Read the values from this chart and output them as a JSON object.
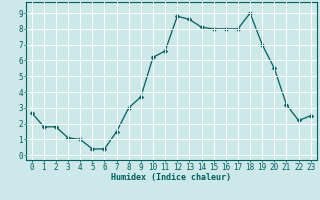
{
  "x": [
    0,
    1,
    2,
    3,
    4,
    5,
    6,
    7,
    8,
    9,
    10,
    11,
    12,
    13,
    14,
    15,
    16,
    17,
    18,
    19,
    20,
    21,
    22,
    23
  ],
  "y": [
    2.7,
    1.8,
    1.8,
    1.1,
    1.0,
    0.4,
    0.4,
    1.5,
    3.0,
    3.7,
    6.2,
    6.6,
    8.8,
    8.6,
    8.1,
    8.0,
    8.0,
    8.0,
    9.0,
    7.0,
    5.5,
    3.2,
    2.2,
    2.5
  ],
  "xlabel": "Humidex (Indice chaleur)",
  "xlim": [
    -0.5,
    23.5
  ],
  "ylim": [
    -0.3,
    9.7
  ],
  "line_color": "#005f5f",
  "marker": "D",
  "marker_size": 2.2,
  "bg_color": "#cce8e8",
  "grid_color": "#ffffff",
  "axis_color": "#005f5f",
  "xticks": [
    0,
    1,
    2,
    3,
    4,
    5,
    6,
    7,
    8,
    9,
    10,
    11,
    12,
    13,
    14,
    15,
    16,
    17,
    18,
    19,
    20,
    21,
    22,
    23
  ],
  "yticks": [
    0,
    1,
    2,
    3,
    4,
    5,
    6,
    7,
    8,
    9
  ],
  "xlabel_fontsize": 6.0,
  "tick_fontsize": 5.5
}
